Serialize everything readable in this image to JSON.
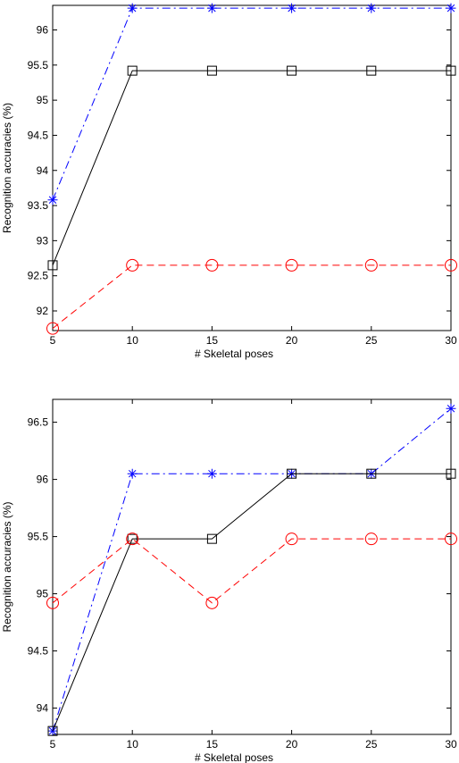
{
  "chart_data": [
    {
      "type": "line",
      "xlabel": "# Skeletal poses",
      "ylabel": "Recognition accuracies (%)",
      "x": [
        5,
        10,
        15,
        20,
        25,
        30
      ],
      "xlim": [
        5,
        30
      ],
      "ylim": [
        91.72,
        96.35
      ],
      "xticks": [
        "5",
        "10",
        "15",
        "20",
        "25",
        "30"
      ],
      "yticks": [
        "92",
        "92.5",
        "93",
        "93.5",
        "94",
        "94.5",
        "95",
        "95.5",
        "96"
      ],
      "grid": false,
      "series": [
        {
          "values": [
            93.58,
            96.31,
            96.31,
            96.31,
            96.31,
            96.31
          ],
          "color": "#0000ff",
          "line": "dash-dot",
          "marker": "asterisk"
        },
        {
          "values": [
            92.65,
            95.42,
            95.42,
            95.42,
            95.42,
            95.42
          ],
          "color": "#000000",
          "line": "solid",
          "marker": "square"
        },
        {
          "values": [
            91.75,
            92.65,
            92.65,
            92.65,
            92.65,
            92.65
          ],
          "color": "#ff0000",
          "line": "dashed",
          "marker": "circle"
        }
      ]
    },
    {
      "type": "line",
      "xlabel": "# Skeletal poses",
      "ylabel": "Recognition accuracies (%)",
      "x": [
        5,
        10,
        15,
        20,
        25,
        30
      ],
      "xlim": [
        5,
        30
      ],
      "ylim": [
        93.77,
        96.7
      ],
      "xticks": [
        "5",
        "10",
        "15",
        "20",
        "25",
        "30"
      ],
      "yticks": [
        "94",
        "94.5",
        "95",
        "95.5",
        "96",
        "96.5"
      ],
      "grid": false,
      "series": [
        {
          "values": [
            93.8,
            96.05,
            96.05,
            96.05,
            96.05,
            96.62
          ],
          "color": "#0000ff",
          "line": "dash-dot",
          "marker": "asterisk"
        },
        {
          "values": [
            93.8,
            95.48,
            95.48,
            96.05,
            96.05,
            96.05
          ],
          "color": "#000000",
          "line": "solid",
          "marker": "square"
        },
        {
          "values": [
            94.92,
            95.48,
            94.92,
            95.48,
            95.48,
            95.48
          ],
          "color": "#ff0000",
          "line": "dashed",
          "marker": "circle"
        }
      ]
    }
  ]
}
